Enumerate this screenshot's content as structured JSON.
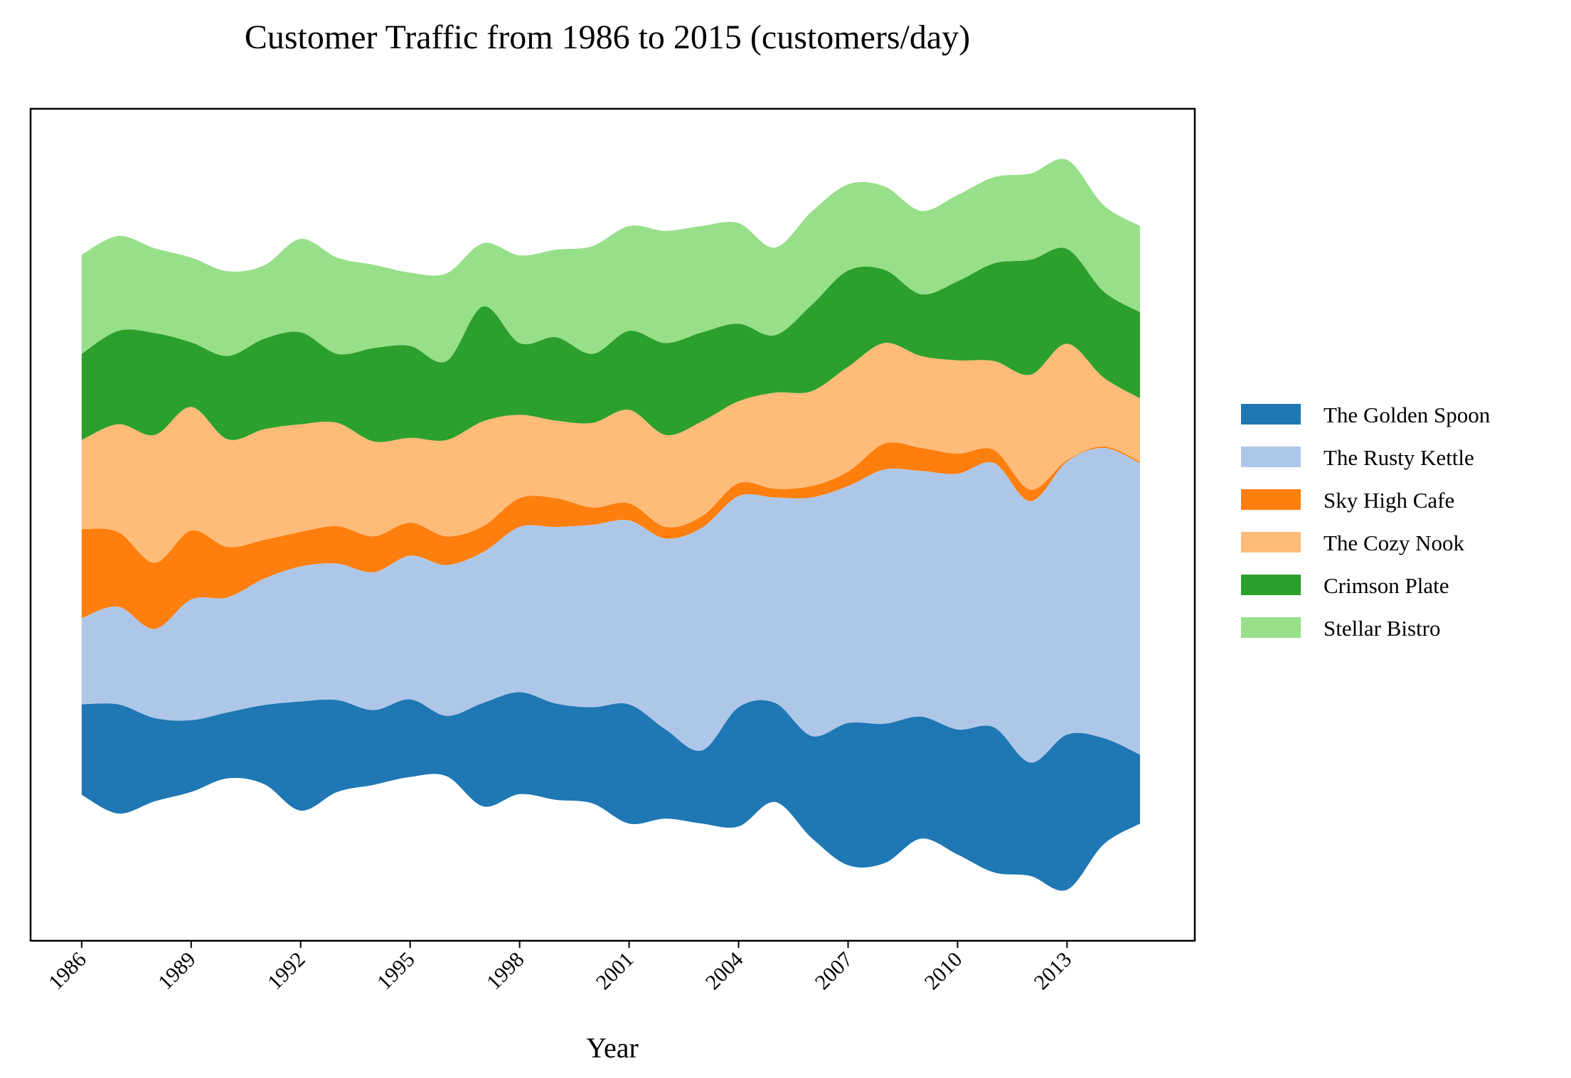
{
  "chart_data": {
    "type": "area",
    "subtype": "streamgraph",
    "title": "Customer Traffic from 1986 to 2015 (customers/day)",
    "xlabel": "Year",
    "ylabel": "",
    "x": [
      1986,
      1987,
      1988,
      1989,
      1990,
      1991,
      1992,
      1993,
      1994,
      1995,
      1996,
      1997,
      1998,
      1999,
      2000,
      2001,
      2002,
      2003,
      2004,
      2005,
      2006,
      2007,
      2008,
      2009,
      2010,
      2011,
      2012,
      2013,
      2014,
      2015
    ],
    "xtick_labels": [
      "1986",
      "1989",
      "1992",
      "1995",
      "1998",
      "2001",
      "2004",
      "2007",
      "2010",
      "2013"
    ],
    "xlim": [
      1984.6,
      2016.5
    ],
    "y_axis_visible": false,
    "grid": false,
    "legend_position": "right",
    "series": [
      {
        "name": "The Golden Spoon",
        "color": "#1f77b4",
        "values": [
          63,
          76,
          58,
          50,
          46,
          55,
          76,
          64,
          52,
          54,
          42,
          72,
          71,
          67,
          67,
          83,
          62,
          51,
          83,
          69,
          71,
          99,
          97,
          85,
          87,
          101,
          79,
          108,
          74,
          48
        ]
      },
      {
        "name": "The Rusty Kettle",
        "color": "#aec7e8",
        "values": [
          60,
          68,
          62,
          84,
          80,
          88,
          94,
          95,
          96,
          100,
          105,
          105,
          115,
          123,
          127,
          128,
          133,
          155,
          147,
          143,
          166,
          165,
          177,
          171,
          178,
          184,
          182,
          190,
          202,
          203
        ]
      },
      {
        "name": "Sky High Cafe",
        "color": "#ff7f0e",
        "values": [
          62,
          52,
          46,
          48,
          35,
          27,
          24,
          26,
          25,
          23,
          20,
          18,
          20,
          20,
          12,
          12,
          8,
          8,
          9,
          6,
          8,
          10,
          18,
          16,
          14,
          9,
          8,
          1,
          1,
          1
        ]
      },
      {
        "name": "The Cozy Nook",
        "color": "#ffbb78",
        "values": [
          62,
          75,
          89,
          86,
          75,
          77,
          75,
          72,
          66,
          59,
          67,
          73,
          58,
          54,
          59,
          65,
          64,
          66,
          57,
          67,
          66,
          73,
          70,
          64,
          65,
          62,
          80,
          81,
          48,
          44
        ]
      },
      {
        "name": "Crimson Plate",
        "color": "#2ca02c",
        "values": [
          60,
          65,
          71,
          45,
          58,
          63,
          64,
          48,
          65,
          64,
          55,
          80,
          50,
          58,
          48,
          55,
          64,
          62,
          54,
          40,
          60,
          67,
          51,
          43,
          55,
          68,
          80,
          66,
          60,
          60
        ]
      },
      {
        "name": "Stellar Bistro",
        "color": "#98df8a",
        "values": [
          69,
          66,
          59,
          59,
          59,
          51,
          65,
          67,
          58,
          51,
          61,
          44,
          61,
          61,
          75,
          73,
          78,
          74,
          70,
          61,
          65,
          60,
          58,
          58,
          60,
          60,
          60,
          62,
          60,
          60
        ]
      }
    ]
  }
}
